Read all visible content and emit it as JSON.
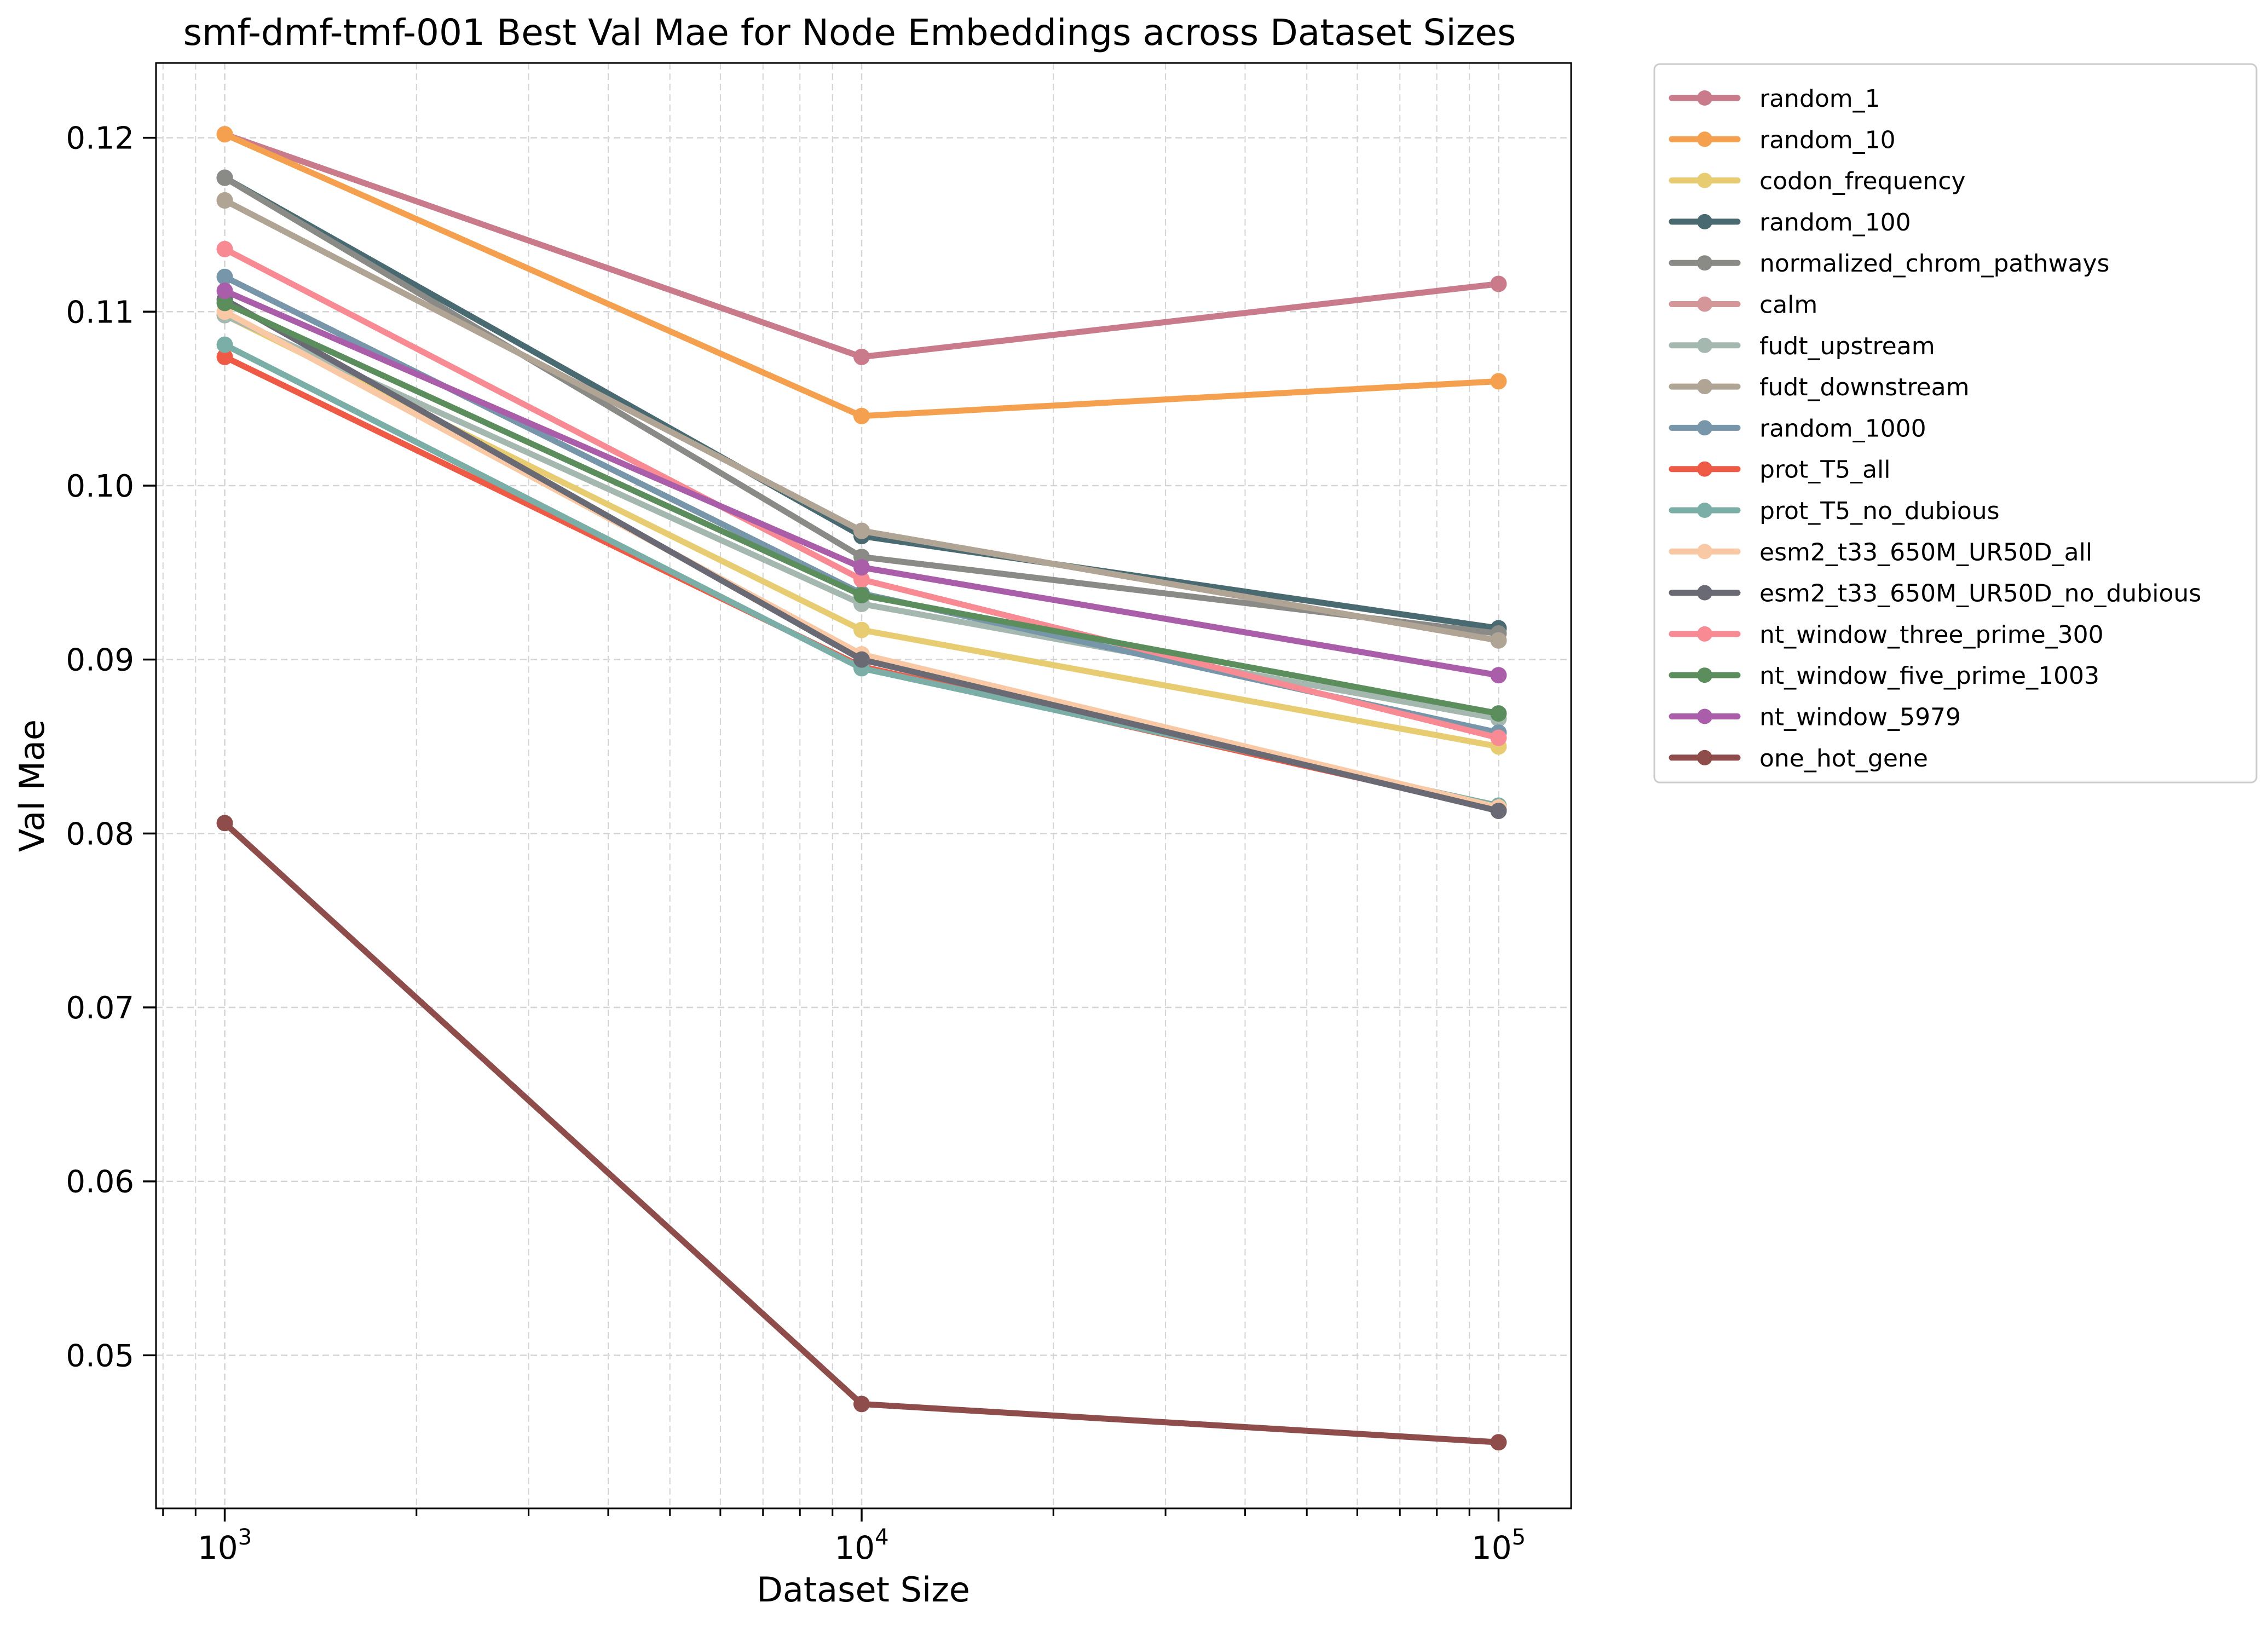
{
  "chart_data": {
    "type": "line",
    "title": "smf-dmf-tmf-001 Best Val Mae for Node Embeddings across Dataset Sizes",
    "xlabel": "Dataset Size",
    "ylabel": "Val Mae",
    "xscale": "log",
    "x": [
      1000,
      10000,
      100000
    ],
    "xlim": [
      780,
      130000
    ],
    "ylim": [
      0.0412,
      0.1243
    ],
    "x_ticks": [
      {
        "value": 1000,
        "base": "10",
        "exp": "3"
      },
      {
        "value": 10000,
        "base": "10",
        "exp": "4"
      },
      {
        "value": 100000,
        "base": "10",
        "exp": "5"
      }
    ],
    "y_ticks": [
      {
        "value": 0.05,
        "label": "0.05"
      },
      {
        "value": 0.06,
        "label": "0.06"
      },
      {
        "value": 0.07,
        "label": "0.07"
      },
      {
        "value": 0.08,
        "label": "0.08"
      },
      {
        "value": 0.09,
        "label": "0.09"
      },
      {
        "value": 0.1,
        "label": "0.10"
      },
      {
        "value": 0.11,
        "label": "0.11"
      },
      {
        "value": 0.12,
        "label": "0.12"
      }
    ],
    "grid": true,
    "legend_position": "outside-right-top",
    "series": [
      {
        "name": "random_1",
        "color": "#c97b8b",
        "values": [
          0.1202,
          0.1074,
          0.1116
        ]
      },
      {
        "name": "random_10",
        "color": "#f4a04e",
        "values": [
          0.1202,
          0.104,
          0.106
        ]
      },
      {
        "name": "codon_frequency",
        "color": "#e8cc72",
        "values": [
          0.1098,
          0.0917,
          0.085
        ]
      },
      {
        "name": "random_100",
        "color": "#4a6a72",
        "values": [
          0.1177,
          0.0971,
          0.0918
        ]
      },
      {
        "name": "normalized_chrom_pathways",
        "color": "#8a8a86",
        "values": [
          0.1177,
          0.0959,
          0.0915
        ]
      },
      {
        "name": "calm",
        "color": "#d49699",
        "values": [
          0.1164,
          0.0974,
          0.0911
        ]
      },
      {
        "name": "fudt_upstream",
        "color": "#a4b8b0",
        "values": [
          0.1098,
          0.0932,
          0.0866
        ]
      },
      {
        "name": "fudt_downstream",
        "color": "#b0a494",
        "values": [
          0.1164,
          0.0974,
          0.0911
        ]
      },
      {
        "name": "random_1000",
        "color": "#7796aa",
        "values": [
          0.112,
          0.0938,
          0.0858
        ]
      },
      {
        "name": "prot_T5_all",
        "color": "#ee5a45",
        "values": [
          0.1074,
          0.0896,
          0.0814
        ]
      },
      {
        "name": "prot_T5_no_dubious",
        "color": "#7aaea6",
        "values": [
          0.1081,
          0.0895,
          0.0816
        ]
      },
      {
        "name": "esm2_t33_650M_UR50D_all",
        "color": "#f8c9a4",
        "values": [
          0.11,
          0.0903,
          0.0815
        ]
      },
      {
        "name": "esm2_t33_650M_UR50D_no_dubious",
        "color": "#6a6a74",
        "values": [
          0.1107,
          0.09,
          0.0813
        ]
      },
      {
        "name": "nt_window_three_prime_300",
        "color": "#f78a92",
        "values": [
          0.1136,
          0.0946,
          0.0855
        ]
      },
      {
        "name": "nt_window_five_prime_1003",
        "color": "#5b8d5d",
        "values": [
          0.1105,
          0.0937,
          0.0869
        ]
      },
      {
        "name": "nt_window_5979",
        "color": "#aa5da9",
        "values": [
          0.1112,
          0.0953,
          0.0891
        ]
      },
      {
        "name": "one_hot_gene",
        "color": "#8e4c4a",
        "values": [
          0.0806,
          0.0472,
          0.045
        ]
      }
    ]
  }
}
